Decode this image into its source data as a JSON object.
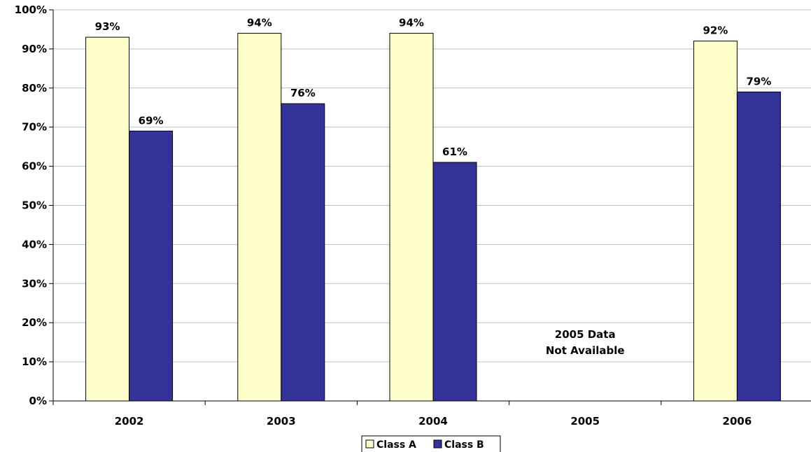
{
  "chart_data": {
    "type": "bar",
    "categories": [
      "2002",
      "2003",
      "2004",
      "2005",
      "2006"
    ],
    "series": [
      {
        "name": "Class A",
        "values": [
          93,
          94,
          94,
          null,
          92
        ],
        "color": "#ffffcc"
      },
      {
        "name": "Class B",
        "values": [
          69,
          76,
          61,
          null,
          79
        ],
        "color": "#333399"
      }
    ],
    "data_labels": {
      "Class A": [
        "93%",
        "94%",
        "94%",
        "",
        "92%"
      ],
      "Class B": [
        "69%",
        "76%",
        "61%",
        "",
        "79%"
      ]
    },
    "ylim": [
      0,
      100
    ],
    "yticks": [
      0,
      10,
      20,
      30,
      40,
      50,
      60,
      70,
      80,
      90,
      100
    ],
    "ytick_labels": [
      "0%",
      "10%",
      "20%",
      "30%",
      "40%",
      "50%",
      "60%",
      "70%",
      "80%",
      "90%",
      "100%"
    ],
    "grid": true,
    "legend": "bottom-center",
    "annotations": [
      {
        "category": "2005",
        "lines": [
          "2005 Data",
          "Not Available"
        ]
      }
    ]
  }
}
